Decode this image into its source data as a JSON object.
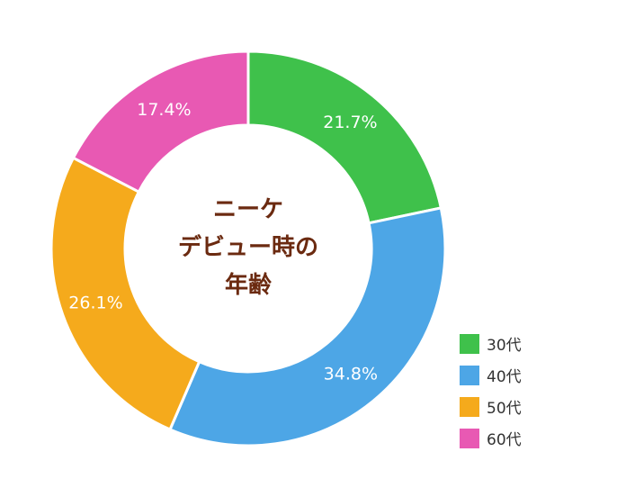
{
  "chart_data": {
    "type": "pie",
    "center_title_lines": [
      "ニーケ",
      "デビュー時の",
      "年齢"
    ],
    "categories": [
      "30代",
      "40代",
      "50代",
      "60代"
    ],
    "values": [
      21.7,
      34.8,
      26.1,
      17.4
    ],
    "value_labels": [
      "21.7%",
      "34.8%",
      "26.1%",
      "17.4%"
    ],
    "colors": [
      "#3fc14b",
      "#4da6e6",
      "#f5aa1c",
      "#e859b3"
    ],
    "legend_position": "bottom-right",
    "start_angle": "top",
    "direction": "clockwise"
  }
}
